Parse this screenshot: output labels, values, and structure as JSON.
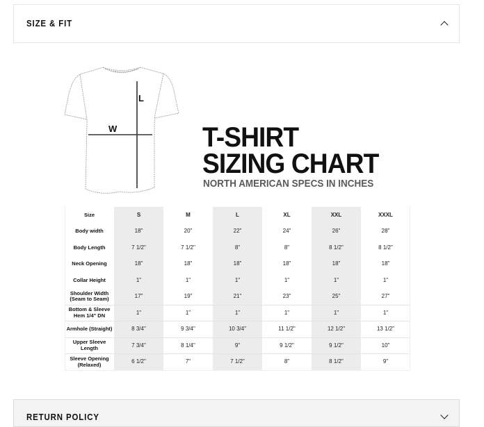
{
  "size_fit": {
    "title": "SIZE & FIT",
    "icon": "chevron-up-icon"
  },
  "return_policy": {
    "title": "RETURN POLICY",
    "icon": "chevron-down-icon"
  },
  "chart": {
    "diagram_labels": {
      "length": "L",
      "width": "W"
    },
    "title_line1": "T-SHIRT",
    "title_line2": "SIZING CHART",
    "subtitle": "NORTH AMERICAN SPECS IN INCHES",
    "sizes": [
      "Size",
      "S",
      "M",
      "L",
      "XL",
      "XXL",
      "XXXL"
    ],
    "rows": [
      {
        "label": "Body width",
        "values": [
          "18\"",
          "20\"",
          "22\"",
          "24\"",
          "26\"",
          "28\""
        ]
      },
      {
        "label": "Body Length",
        "values": [
          "7 1/2\"",
          "7 1/2\"",
          "8\"",
          "8\"",
          "8 1/2\"",
          "8 1/2\""
        ]
      },
      {
        "label": "Neck Opening",
        "values": [
          "18\"",
          "18\"",
          "18\"",
          "18\"",
          "18\"",
          "18\""
        ]
      },
      {
        "label": "Collar Height",
        "values": [
          "1\"",
          "1\"",
          "1\"",
          "1\"",
          "1\"",
          "1\""
        ]
      },
      {
        "label": "Shoulder Width (Seam to Seam)",
        "values": [
          "17\"",
          "19\"",
          "21\"",
          "23\"",
          "25\"",
          "27\""
        ]
      },
      {
        "label": "Bottom & Sleeve Hem 1/4\" DN",
        "values": [
          "1\"",
          "1\"",
          "1\"",
          "1\"",
          "1\"",
          "1\""
        ]
      },
      {
        "label": "Armhole (Straight)",
        "values": [
          "8 3/4\"",
          "9 3/4\"",
          "10 3/4\"",
          "11 1/2\"",
          "12 1/2\"",
          "13 1/2\""
        ]
      },
      {
        "label": "Upper Sleeve Length",
        "values": [
          "7 3/4\"",
          "8 1/4\"",
          "9\"",
          "9 1/2\"",
          "9 1/2\"",
          "10\""
        ]
      },
      {
        "label": "Sleeve Opening (Relaxed)",
        "values": [
          "6 1/2\"",
          "7\"",
          "7 1/2\"",
          "8\"",
          "8 1/2\"",
          "9\""
        ]
      }
    ]
  }
}
